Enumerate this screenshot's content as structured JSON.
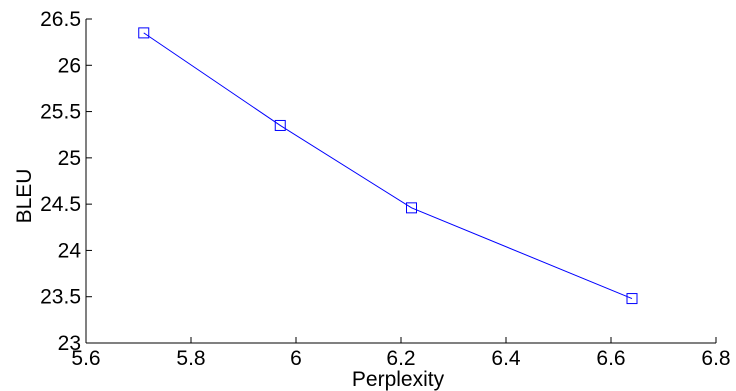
{
  "chart_data": {
    "type": "line",
    "title": "",
    "xlabel": "Perplexity",
    "ylabel": "BLEU",
    "xlim": [
      5.6,
      6.8
    ],
    "ylim": [
      23,
      26.5
    ],
    "xticks": [
      5.6,
      5.8,
      6.0,
      6.2,
      6.4,
      6.6,
      6.8
    ],
    "xtick_labels": [
      "5.6",
      "5.8",
      "6",
      "6.2",
      "6.4",
      "6.6",
      "6.8"
    ],
    "yticks": [
      23,
      23.5,
      24,
      24.5,
      25,
      25.5,
      26,
      26.5
    ],
    "ytick_labels": [
      "23",
      "23.5",
      "24",
      "24.5",
      "25",
      "25.5",
      "26",
      "26.5"
    ],
    "grid": false,
    "series": [
      {
        "marker": "square",
        "color": "#0000ff",
        "points": [
          {
            "x": 5.71,
            "y": 26.35
          },
          {
            "x": 5.97,
            "y": 25.35
          },
          {
            "x": 6.22,
            "y": 24.46
          },
          {
            "x": 6.64,
            "y": 23.48
          }
        ]
      }
    ]
  }
}
